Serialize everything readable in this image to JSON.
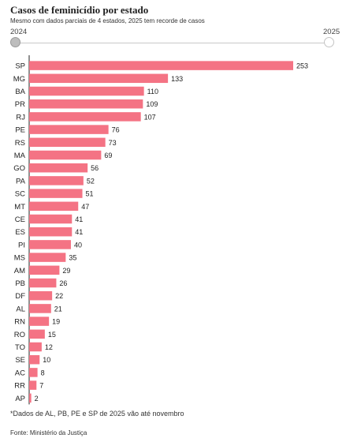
{
  "header": {
    "title": "Casos de feminicídio por estado",
    "subtitle": "Mesmo com dados parciais de 4 estados, 2025 tem recorde de casos"
  },
  "slider": {
    "start_label": "2024",
    "end_label": "2025",
    "selected": "2024"
  },
  "footer": {
    "footnote": "*Dados de AL, PB, PE e SP de 2025 vão até novembro",
    "source": "Fonte: Ministério da Justiça"
  },
  "colors": {
    "bar": "#f47384",
    "axis": "#222222"
  },
  "chart_data": {
    "type": "bar",
    "orientation": "horizontal",
    "title": "Casos de feminicídio por estado",
    "categories": [
      "SP",
      "MG",
      "BA",
      "PR",
      "RJ",
      "PE",
      "RS",
      "MA",
      "GO",
      "PA",
      "SC",
      "MT",
      "CE",
      "ES",
      "PI",
      "MS",
      "AM",
      "PB",
      "DF",
      "AL",
      "RN",
      "RO",
      "TO",
      "SE",
      "AC",
      "RR",
      "AP"
    ],
    "values": [
      253,
      133,
      110,
      109,
      107,
      76,
      73,
      69,
      56,
      52,
      51,
      47,
      41,
      41,
      40,
      35,
      29,
      26,
      22,
      21,
      19,
      15,
      12,
      10,
      8,
      7,
      2
    ],
    "xlim": [
      0,
      253
    ],
    "grid": false,
    "legend": "none"
  }
}
